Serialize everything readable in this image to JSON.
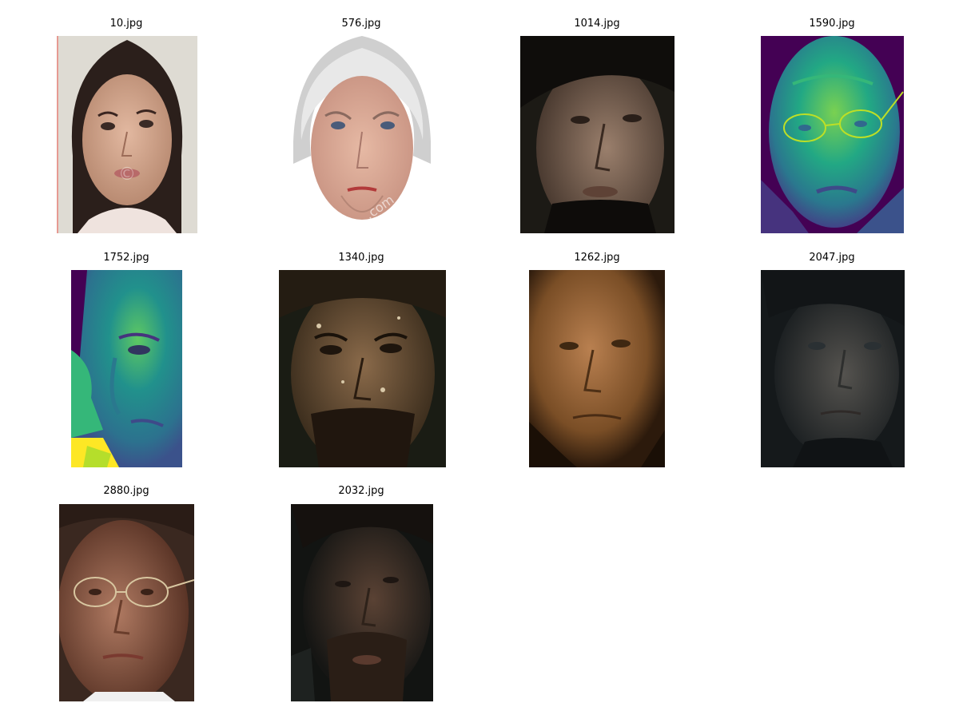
{
  "figure": {
    "panels": [
      {
        "caption": "10.jpg",
        "palette": "natural",
        "tone": "light"
      },
      {
        "caption": "576.jpg",
        "palette": "natural",
        "tone": "light"
      },
      {
        "caption": "1014.jpg",
        "palette": "natural",
        "tone": "dark"
      },
      {
        "caption": "1590.jpg",
        "palette": "viridis",
        "tone": "mid"
      },
      {
        "caption": "1752.jpg",
        "palette": "viridis",
        "tone": "mid"
      },
      {
        "caption": "1340.jpg",
        "palette": "natural",
        "tone": "dark"
      },
      {
        "caption": "1262.jpg",
        "palette": "natural",
        "tone": "warm"
      },
      {
        "caption": "2047.jpg",
        "palette": "natural",
        "tone": "dark"
      },
      {
        "caption": "2880.jpg",
        "palette": "natural",
        "tone": "warm"
      },
      {
        "caption": "2032.jpg",
        "palette": "natural",
        "tone": "dark"
      }
    ]
  }
}
